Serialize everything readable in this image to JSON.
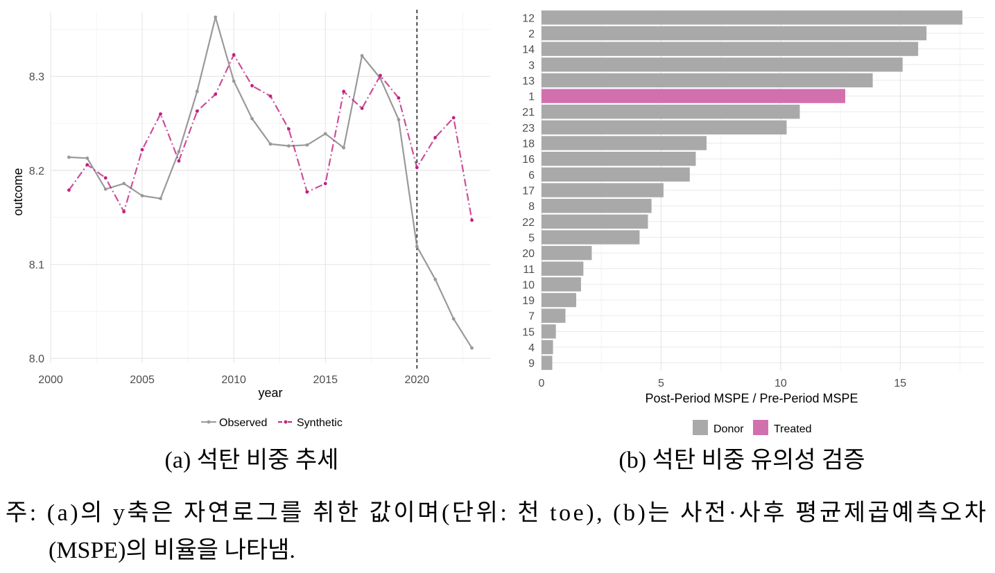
{
  "chart_data": [
    {
      "type": "line",
      "xlabel": "year",
      "ylabel": "outcome",
      "xlim": [
        2000,
        2024
      ],
      "ylim": [
        7.995,
        8.368
      ],
      "xticks": [
        "2000",
        "2005",
        "2010",
        "2015",
        "2020"
      ],
      "yticks": [
        "8.0",
        "8.1",
        "8.2",
        "8.3"
      ],
      "vline": 2020,
      "grid": true,
      "legend_position": "bottom",
      "x": [
        2001,
        2002,
        2003,
        2004,
        2005,
        2006,
        2007,
        2008,
        2009,
        2010,
        2011,
        2012,
        2013,
        2014,
        2015,
        2016,
        2017,
        2018,
        2019,
        2020,
        2021,
        2022,
        2023
      ],
      "series": [
        {
          "name": "Observed",
          "color": "#999999",
          "linestyle": "solid",
          "values": [
            8.214,
            8.213,
            8.18,
            8.186,
            8.173,
            8.17,
            8.22,
            8.284,
            8.363,
            8.295,
            8.255,
            8.228,
            8.226,
            8.227,
            8.239,
            8.224,
            8.322,
            8.298,
            8.254,
            8.119,
            8.084,
            8.042,
            8.011
          ]
        },
        {
          "name": "Synthetic",
          "color": "#C0207F",
          "linestyle": "dashdot",
          "values": [
            8.179,
            8.206,
            8.192,
            8.156,
            8.222,
            8.26,
            8.21,
            8.263,
            8.281,
            8.323,
            8.29,
            8.279,
            8.244,
            8.177,
            8.186,
            8.284,
            8.266,
            8.301,
            8.277,
            8.203,
            8.235,
            8.256,
            8.147
          ]
        }
      ]
    },
    {
      "type": "bar",
      "orientation": "horizontal",
      "xlabel": "Post-Period MSPE / Pre-Period MSPE",
      "xlim": [
        0,
        18.5
      ],
      "xticks": [
        "0",
        "5",
        "10",
        "15"
      ],
      "grid": true,
      "legend_position": "bottom",
      "categories": [
        "12",
        "2",
        "14",
        "3",
        "13",
        "1",
        "21",
        "23",
        "18",
        "16",
        "6",
        "17",
        "8",
        "22",
        "5",
        "20",
        "11",
        "10",
        "19",
        "7",
        "15",
        "4",
        "9"
      ],
      "values": [
        17.6,
        16.1,
        15.75,
        15.1,
        13.85,
        12.7,
        10.8,
        10.25,
        6.9,
        6.45,
        6.2,
        5.1,
        4.6,
        4.45,
        4.1,
        2.1,
        1.75,
        1.65,
        1.45,
        1.0,
        0.6,
        0.48,
        0.45
      ],
      "groups": [
        "Donor",
        "Donor",
        "Donor",
        "Donor",
        "Donor",
        "Treated",
        "Donor",
        "Donor",
        "Donor",
        "Donor",
        "Donor",
        "Donor",
        "Donor",
        "Donor",
        "Donor",
        "Donor",
        "Donor",
        "Donor",
        "Donor",
        "Donor",
        "Donor",
        "Donor",
        "Donor"
      ],
      "legend": [
        {
          "name": "Donor",
          "color": "#A9A9A9"
        },
        {
          "name": "Treated",
          "color": "#D270AE"
        }
      ]
    }
  ],
  "captions": {
    "a": "(a) 석탄 비중 추세",
    "b": "(b) 석탄 비중 유의성 검증"
  },
  "note": {
    "line1": "주: (a)의 y축은 자연로그를 취한 값이며(단위: 천 toe), (b)는 사전·사후 평균제곱예측오차",
    "line2": "(MSPE)의 비율을 나타냄."
  }
}
